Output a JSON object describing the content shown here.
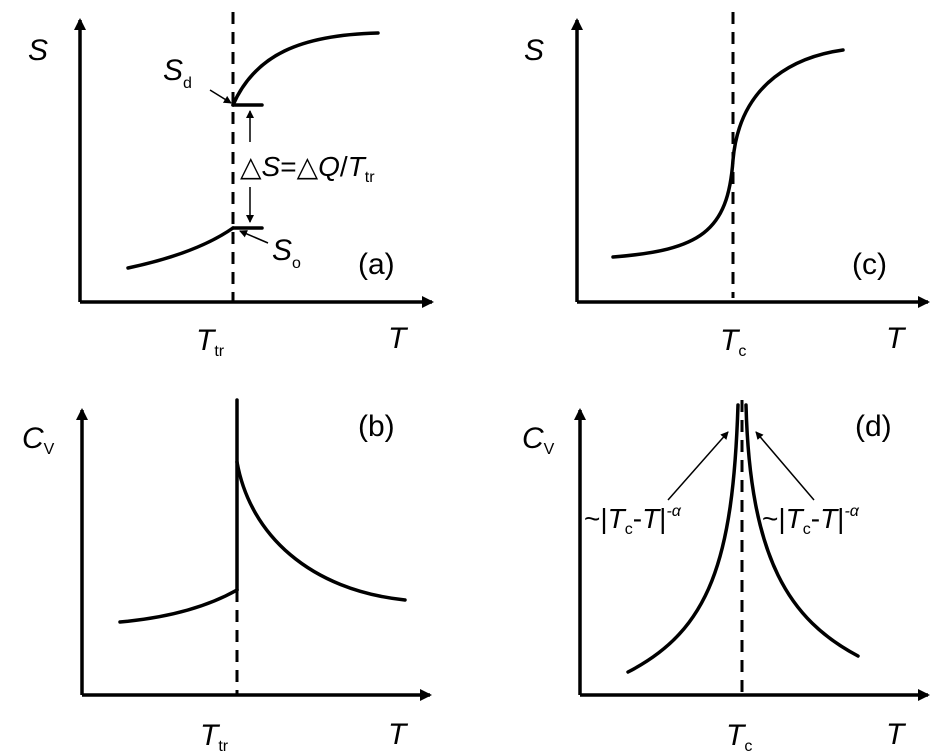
{
  "panels": {
    "a": {
      "tag": "(a)",
      "y_axis": {
        "main": "S",
        "sub": ""
      },
      "x_axis": {
        "main": "T",
        "sub": ""
      },
      "tick": {
        "main": "T",
        "sub": "tr"
      },
      "upper_label": {
        "main": "S",
        "sub": "d"
      },
      "lower_label": {
        "main": "S",
        "sub": "o"
      },
      "delta_label": {
        "prefix": "△",
        "s": "S",
        "mid": "=△",
        "q": "Q",
        "slash": "/",
        "t": "T",
        "sub": "tr"
      }
    },
    "b": {
      "tag": "(b)",
      "y_axis": {
        "main": "C",
        "sub": "V"
      },
      "x_axis": {
        "main": "T",
        "sub": ""
      },
      "tick": {
        "main": "T",
        "sub": "tr"
      }
    },
    "c": {
      "tag": "(c)",
      "y_axis": {
        "main": "S",
        "sub": ""
      },
      "x_axis": {
        "main": "T",
        "sub": ""
      },
      "tick": {
        "main": "T",
        "sub": "c"
      }
    },
    "d": {
      "tag": "(d)",
      "y_axis": {
        "main": "C",
        "sub": "V"
      },
      "x_axis": {
        "main": "T",
        "sub": ""
      },
      "tick": {
        "main": "T",
        "sub": "c"
      },
      "left_note": {
        "pre": "~|",
        "t1": "T",
        "s1": "c",
        "mid": "-",
        "t2": "T",
        "post": "|",
        "exp": "-α"
      },
      "right_note": {
        "pre": "~|",
        "t1": "T",
        "s1": "c",
        "mid": "-",
        "t2": "T",
        "post": "|",
        "exp": "-α"
      }
    }
  }
}
